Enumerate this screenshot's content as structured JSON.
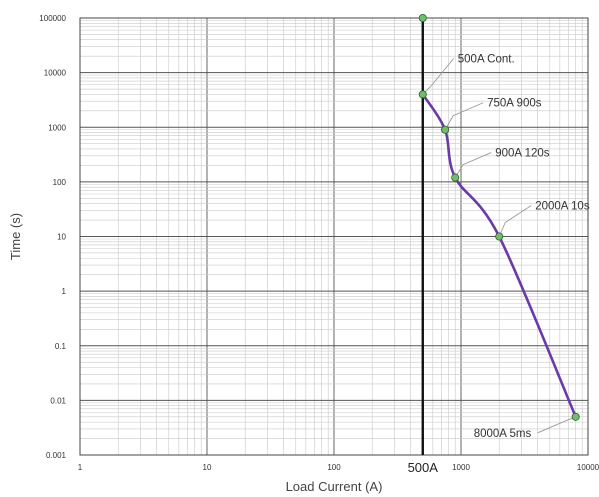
{
  "chart_data": {
    "type": "line",
    "xlabel": "Load Current (A)",
    "ylabel": "Time (s)",
    "x_scale": "log",
    "y_scale": "log",
    "xlim": [
      1,
      10000
    ],
    "ylim": [
      0.001,
      100000
    ],
    "grid": true,
    "x_tick_labels": [
      "1",
      "10",
      "100",
      "1000",
      "10000"
    ],
    "y_tick_labels": [
      "0.001",
      "0.01",
      "0.1",
      "1",
      "10",
      "100",
      "1000",
      "10000",
      "100000"
    ],
    "series": [
      {
        "color": "#6a3aa8",
        "points": [
          {
            "x": 500,
            "y": 4000
          },
          {
            "x": 750,
            "y": 900
          },
          {
            "x": 900,
            "y": 120
          },
          {
            "x": 2000,
            "y": 10
          },
          {
            "x": 8000,
            "y": 0.005
          }
        ]
      }
    ],
    "vertical_line": {
      "x": 500,
      "label": "500A",
      "color": "#111111",
      "top_point_y": 100000
    },
    "annotations": [
      {
        "text": "500A Cont.",
        "x": 500,
        "y": 4000
      },
      {
        "text": "750A 900s",
        "x": 750,
        "y": 900
      },
      {
        "text": "900A 120s",
        "x": 900,
        "y": 120
      },
      {
        "text": "2000A 10s",
        "x": 2000,
        "y": 10
      },
      {
        "text": "8000A 5ms",
        "x": 8000,
        "y": 0.005
      }
    ],
    "marker_color": "#6fbf6a"
  }
}
